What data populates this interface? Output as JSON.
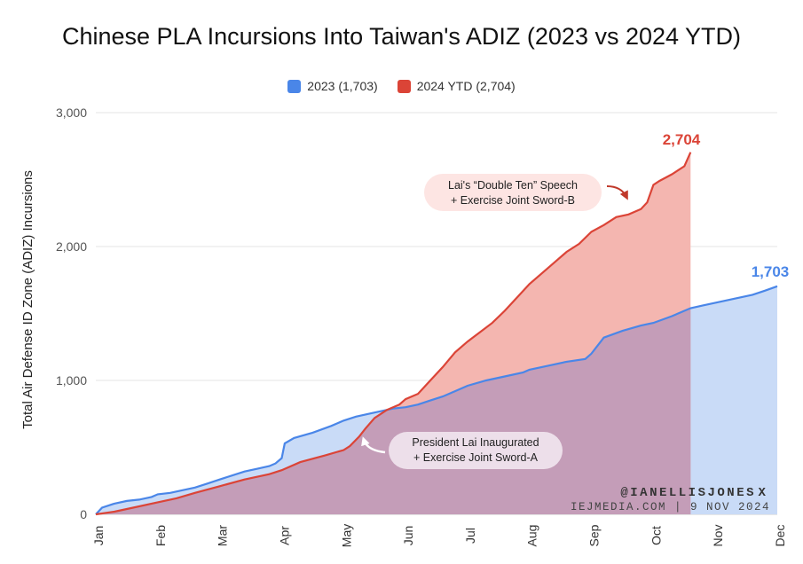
{
  "title": "Chinese PLA Incursions Into Taiwan's ADIZ (2023 vs 2024 YTD)",
  "colors": {
    "series_2023": "#4a86e8",
    "series_2024": "#db4437",
    "fill_2023": "#c9dbf7",
    "fill_2024": "#f4b6b0",
    "overlap": "#c49db8",
    "grid": "#e6e6e6"
  },
  "legend": [
    {
      "name": "2023 (1,703)",
      "color": "#4a86e8"
    },
    {
      "name": "2024 YTD (2,704)",
      "color": "#db4437"
    }
  ],
  "end_labels": {
    "label_2024": "2,704",
    "label_2023": "1,703"
  },
  "annotations": [
    {
      "lines": [
        "Lai's “Double Ten” Speech",
        "+ Exercise Joint Sword-B"
      ]
    },
    {
      "lines": [
        "President Lai Inaugurated",
        "+ Exercise Joint Sword-A"
      ]
    }
  ],
  "credit": {
    "handle": "@IANELLISJONES",
    "mark": "X",
    "site": "IEJMEDIA.COM | 9 NOV 2024"
  },
  "chart_data": {
    "type": "area",
    "title": "Chinese PLA Incursions Into Taiwan's ADIZ (2023 vs 2024 YTD)",
    "xlabel": "",
    "ylabel": "Total Air Defense ID Zone (ADIZ) Incursions",
    "ylim": [
      0,
      3000
    ],
    "yticks": [
      0,
      1000,
      2000,
      3000
    ],
    "ytick_labels": [
      "0",
      "1,000",
      "2,000",
      "3,000"
    ],
    "x_unit": "month",
    "xlim": [
      0,
      11
    ],
    "categories": [
      "Jan",
      "Feb",
      "Mar",
      "Apr",
      "May",
      "Jun",
      "Jul",
      "Aug",
      "Sep",
      "Oct",
      "Nov",
      "Dec"
    ],
    "grid": true,
    "legend_position": "top",
    "series": [
      {
        "name": "2023 (1,703)",
        "final": 1703,
        "x": [
          0,
          0.1,
          0.3,
          0.5,
          0.7,
          0.9,
          1.0,
          1.2,
          1.4,
          1.6,
          1.8,
          2.0,
          2.2,
          2.4,
          2.6,
          2.8,
          2.9,
          3.0,
          3.05,
          3.2,
          3.5,
          3.8,
          4.0,
          4.2,
          4.5,
          4.8,
          5.0,
          5.2,
          5.4,
          5.6,
          5.8,
          6.0,
          6.3,
          6.6,
          6.9,
          7.0,
          7.3,
          7.6,
          7.9,
          8.0,
          8.2,
          8.5,
          8.8,
          9.0,
          9.3,
          9.6,
          9.8,
          10.0,
          10.3,
          10.6,
          10.8,
          11.0
        ],
        "y": [
          0,
          50,
          80,
          100,
          110,
          130,
          150,
          160,
          180,
          200,
          230,
          260,
          290,
          320,
          340,
          360,
          380,
          420,
          530,
          570,
          610,
          660,
          700,
          730,
          760,
          790,
          800,
          820,
          850,
          880,
          920,
          960,
          1000,
          1030,
          1060,
          1080,
          1110,
          1140,
          1160,
          1200,
          1320,
          1370,
          1410,
          1430,
          1480,
          1540,
          1560,
          1580,
          1610,
          1640,
          1670,
          1703
        ]
      },
      {
        "name": "2024 YTD (2,704)",
        "final": 2704,
        "x": [
          0,
          0.3,
          0.6,
          1.0,
          1.3,
          1.6,
          2.0,
          2.4,
          2.8,
          3.0,
          3.3,
          3.7,
          4.0,
          4.1,
          4.25,
          4.35,
          4.5,
          4.7,
          4.9,
          5.0,
          5.2,
          5.4,
          5.6,
          5.8,
          6.0,
          6.2,
          6.4,
          6.6,
          6.8,
          7.0,
          7.2,
          7.4,
          7.6,
          7.8,
          8.0,
          8.2,
          8.4,
          8.6,
          8.8,
          8.9,
          9.0,
          9.1,
          9.3,
          9.5,
          9.6
        ],
        "y": [
          0,
          20,
          50,
          90,
          120,
          160,
          210,
          260,
          300,
          330,
          390,
          440,
          480,
          510,
          580,
          640,
          720,
          780,
          820,
          860,
          900,
          1000,
          1100,
          1210,
          1290,
          1360,
          1430,
          1520,
          1620,
          1720,
          1800,
          1880,
          1960,
          2020,
          2110,
          2160,
          2220,
          2240,
          2280,
          2330,
          2460,
          2490,
          2540,
          2600,
          2704
        ]
      }
    ]
  }
}
